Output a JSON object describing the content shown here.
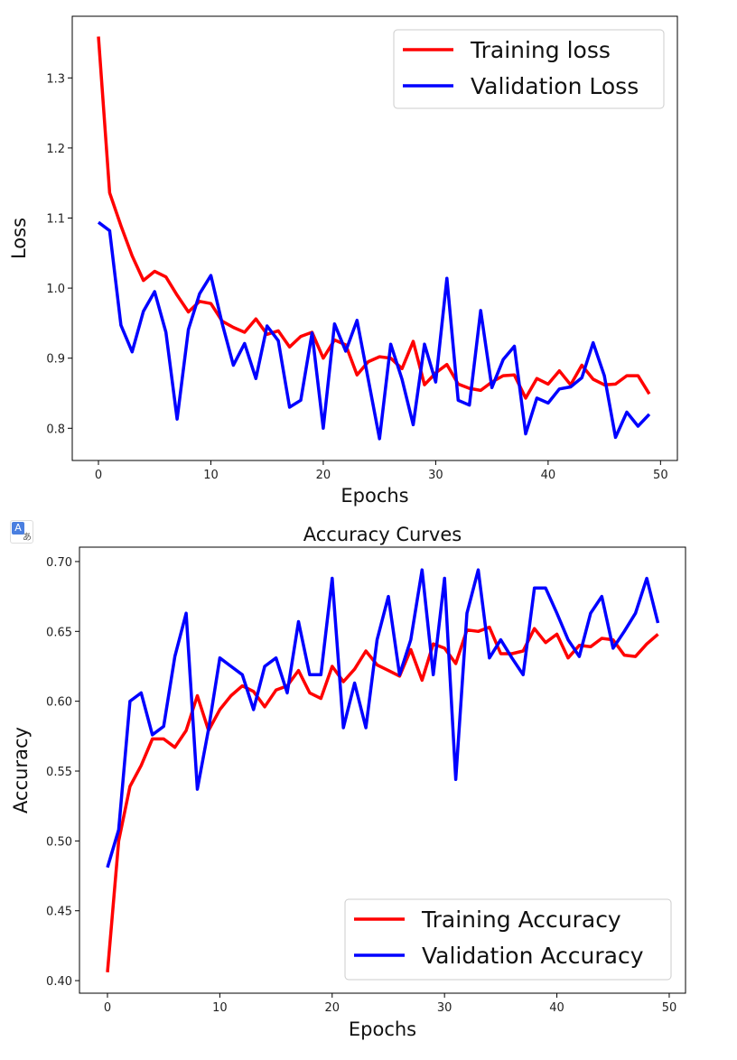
{
  "chart_data": [
    {
      "type": "line",
      "title": "",
      "xlabel": "Epochs",
      "ylabel": "Loss",
      "xlim": [
        -2.33,
        51.5
      ],
      "ylim": [
        0.754,
        1.388
      ],
      "xticks": [
        0,
        10,
        20,
        30,
        40,
        50
      ],
      "yticks": [
        0.8,
        0.9,
        1.0,
        1.1,
        1.2,
        1.3
      ],
      "ytick_labels": [
        "0.8",
        "0.9",
        "1.0",
        "1.1",
        "1.2",
        "1.3"
      ],
      "grid": false,
      "legend": "top-right",
      "x": [
        0,
        1,
        2,
        3,
        4,
        5,
        6,
        7,
        8,
        9,
        10,
        11,
        12,
        13,
        14,
        15,
        16,
        17,
        18,
        19,
        20,
        21,
        22,
        23,
        24,
        25,
        26,
        27,
        28,
        29,
        30,
        31,
        32,
        33,
        34,
        35,
        36,
        37,
        38,
        39,
        40,
        41,
        42,
        43,
        44,
        45,
        46,
        47,
        48,
        49
      ],
      "series": [
        {
          "name": "Training loss",
          "color": "#ff0000",
          "values": [
            1.359,
            1.136,
            1.089,
            1.046,
            1.011,
            1.024,
            1.016,
            0.99,
            0.966,
            0.981,
            0.978,
            0.953,
            0.944,
            0.937,
            0.956,
            0.934,
            0.939,
            0.916,
            0.931,
            0.937,
            0.9,
            0.926,
            0.919,
            0.876,
            0.895,
            0.902,
            0.9,
            0.885,
            0.924,
            0.862,
            0.879,
            0.891,
            0.863,
            0.857,
            0.854,
            0.866,
            0.875,
            0.876,
            0.843,
            0.871,
            0.863,
            0.882,
            0.862,
            0.89,
            0.87,
            0.862,
            0.863,
            0.875,
            0.875,
            0.849
          ]
        },
        {
          "name": "Validation Loss",
          "color": "#0000ff",
          "values": [
            1.094,
            1.082,
            0.947,
            0.909,
            0.967,
            0.995,
            0.937,
            0.813,
            0.941,
            0.992,
            1.018,
            0.95,
            0.89,
            0.921,
            0.871,
            0.946,
            0.925,
            0.83,
            0.84,
            0.936,
            0.8,
            0.949,
            0.91,
            0.954,
            0.87,
            0.785,
            0.92,
            0.87,
            0.805,
            0.92,
            0.866,
            1.014,
            0.84,
            0.833,
            0.968,
            0.858,
            0.898,
            0.917,
            0.792,
            0.843,
            0.836,
            0.856,
            0.859,
            0.872,
            0.922,
            0.875,
            0.787,
            0.823,
            0.803,
            0.82
          ]
        }
      ]
    },
    {
      "type": "line",
      "title": "Accuracy Curves",
      "xlabel": "Epochs",
      "ylabel": "Accuracy",
      "xlim": [
        -2.49,
        51.45
      ],
      "ylim": [
        0.391,
        0.7103
      ],
      "xticks": [
        0,
        10,
        20,
        30,
        40,
        50
      ],
      "yticks": [
        0.4,
        0.45,
        0.5,
        0.55,
        0.6,
        0.65,
        0.7
      ],
      "ytick_labels": [
        "0.40",
        "0.45",
        "0.50",
        "0.55",
        "0.60",
        "0.65",
        "0.70"
      ],
      "grid": false,
      "legend": "bottom-right",
      "x": [
        0,
        1,
        2,
        3,
        4,
        5,
        6,
        7,
        8,
        9,
        10,
        11,
        12,
        13,
        14,
        15,
        16,
        17,
        18,
        19,
        20,
        21,
        22,
        23,
        24,
        25,
        26,
        27,
        28,
        29,
        30,
        31,
        32,
        33,
        34,
        35,
        36,
        37,
        38,
        39,
        40,
        41,
        42,
        43,
        44,
        45,
        46,
        47,
        48,
        49
      ],
      "series": [
        {
          "name": "Training Accuracy",
          "color": "#ff0000",
          "values": [
            0.406,
            0.5,
            0.539,
            0.554,
            0.573,
            0.573,
            0.567,
            0.579,
            0.604,
            0.579,
            0.594,
            0.604,
            0.611,
            0.607,
            0.596,
            0.608,
            0.611,
            0.622,
            0.606,
            0.602,
            0.625,
            0.614,
            0.623,
            0.636,
            0.626,
            0.622,
            0.618,
            0.637,
            0.615,
            0.641,
            0.638,
            0.627,
            0.651,
            0.65,
            0.653,
            0.634,
            0.634,
            0.636,
            0.652,
            0.642,
            0.648,
            0.631,
            0.64,
            0.639,
            0.645,
            0.644,
            0.633,
            0.632,
            0.641,
            0.648
          ]
        },
        {
          "name": "Validation Accuracy",
          "color": "#0000ff",
          "values": [
            0.481,
            0.508,
            0.6,
            0.606,
            0.576,
            0.582,
            0.632,
            0.663,
            0.537,
            0.58,
            0.631,
            0.625,
            0.619,
            0.594,
            0.625,
            0.631,
            0.606,
            0.657,
            0.619,
            0.619,
            0.688,
            0.581,
            0.613,
            0.581,
            0.644,
            0.675,
            0.619,
            0.644,
            0.694,
            0.619,
            0.688,
            0.544,
            0.663,
            0.694,
            0.631,
            0.644,
            0.631,
            0.619,
            0.681,
            0.681,
            0.663,
            0.644,
            0.632,
            0.663,
            0.675,
            0.638,
            0.65,
            0.663,
            0.688,
            0.656
          ]
        }
      ]
    }
  ]
}
